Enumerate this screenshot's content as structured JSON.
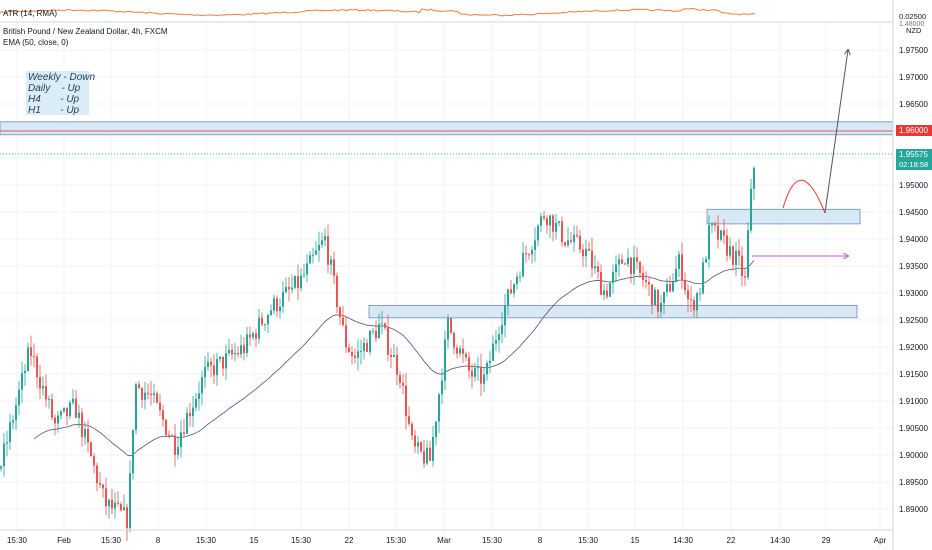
{
  "atr_label": "ATR (14, RMA)",
  "atr_values": [
    "0.02500",
    "NZD"
  ],
  "symbol_title": "British Pound / New Zealand Dollar, 4h, FXCM",
  "ema_label": "EMA (50, close, 0)",
  "note_lines": [
    "Weekly - Down",
    "Daily    - Up",
    "H4       - Up",
    "H1       - Up"
  ],
  "colors": {
    "up": "#26a69a",
    "down": "#ef5350",
    "ema": "#5b4b8a",
    "zone_fill": "#cfe2f3",
    "zone_border": "#6a8fb8",
    "resistance_line": "#e05a6a",
    "price_tag": "#26a69a",
    "level_tag": "#e53935",
    "atr_line": "#f57c3a",
    "projection": "#555555",
    "arc": "#e53935",
    "arrow_purple": "#c05bd8"
  },
  "price_tag": {
    "price": "1.95575",
    "timer": "02:18:58"
  },
  "level_tag": {
    "price": "1.96000"
  },
  "sub_label": "1.48000",
  "chart_data": {
    "type": "candlestick",
    "title": "British Pound / New Zealand Dollar, 4h, FXCM",
    "ylim": [
      1.885,
      1.9855
    ],
    "y_ticks": [
      "1.97500",
      "1.97000",
      "1.96500",
      "1.95500",
      "1.95000",
      "1.94500",
      "1.94000",
      "1.93500",
      "1.93000",
      "1.92500",
      "1.92000",
      "1.91500",
      "1.91000",
      "1.90500",
      "1.90000",
      "1.89500",
      "1.89000"
    ],
    "x_ticks": [
      "15:30",
      "Feb",
      "15:30",
      "8",
      "15:30",
      "15",
      "15:30",
      "22",
      "15:30",
      "Mar",
      "15:30",
      "8",
      "15:30",
      "15",
      "14:30",
      "22",
      "14:30",
      "29",
      "Apr"
    ],
    "horizontal_level": 1.96,
    "last_price": 1.95575,
    "zones": [
      {
        "from": 1.9593,
        "to": 1.9617
      },
      {
        "from": 1.9428,
        "to": 1.9455
      },
      {
        "from": 1.9254,
        "to": 1.9277
      }
    ],
    "ema_period": 50
  }
}
